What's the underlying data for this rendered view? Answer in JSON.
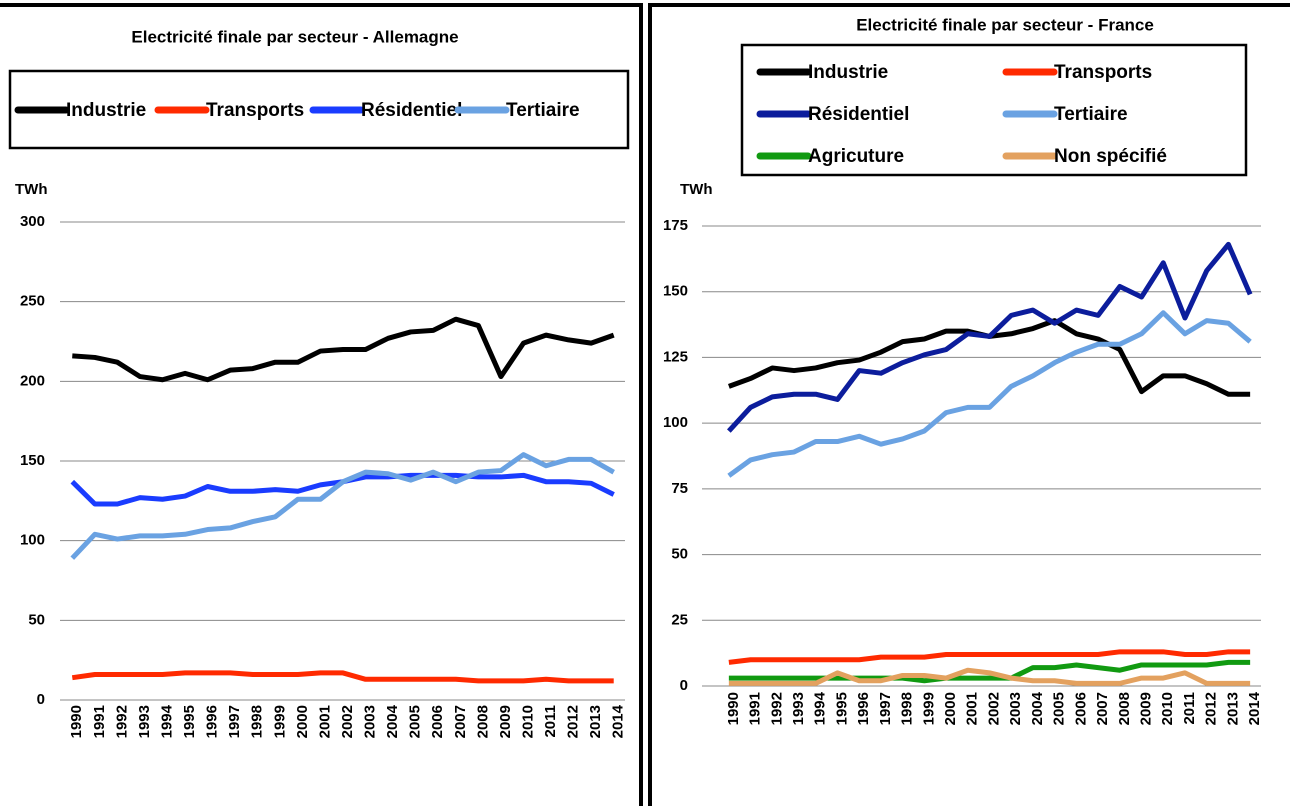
{
  "chart_data": [
    {
      "type": "line",
      "title": "Electricité finale par secteur -  Allemagne",
      "y_label": "TWh",
      "categories": [
        "1990",
        "1991",
        "1992",
        "1993",
        "1994",
        "1995",
        "1996",
        "1997",
        "1998",
        "1999",
        "2000",
        "2001",
        "2002",
        "2003",
        "2004",
        "2005",
        "2006",
        "2007",
        "2008",
        "2009",
        "2010",
        "2011",
        "2012",
        "2013",
        "2014"
      ],
      "ylim": [
        0,
        300
      ],
      "yticks": [
        0,
        50,
        100,
        150,
        200,
        250,
        300
      ],
      "grid": true,
      "series": [
        {
          "name": "Industrie",
          "color": "#000000",
          "values": [
            216,
            215,
            212,
            203,
            201,
            205,
            201,
            207,
            208,
            212,
            212,
            219,
            220,
            220,
            227,
            231,
            232,
            239,
            235,
            203,
            224,
            229,
            226,
            224,
            229
          ]
        },
        {
          "name": "Transports",
          "color": "#ff2a00",
          "values": [
            14,
            16,
            16,
            16,
            16,
            17,
            17,
            17,
            16,
            16,
            16,
            17,
            17,
            13,
            13,
            13,
            13,
            13,
            12,
            12,
            12,
            13,
            12,
            12,
            12
          ]
        },
        {
          "name": "Résidentiel",
          "color": "#1a3cff",
          "values": [
            137,
            123,
            123,
            127,
            126,
            128,
            134,
            131,
            131,
            132,
            131,
            135,
            137,
            140,
            140,
            141,
            141,
            141,
            140,
            140,
            141,
            137,
            137,
            136,
            129
          ]
        },
        {
          "name": "Tertiaire",
          "color": "#6aa2e2",
          "values": [
            89,
            104,
            101,
            103,
            103,
            104,
            107,
            108,
            112,
            115,
            126,
            126,
            137,
            143,
            142,
            138,
            143,
            137,
            143,
            144,
            154,
            147,
            151,
            151,
            143
          ]
        }
      ]
    },
    {
      "type": "line",
      "title": "Electricité finale par secteur - France",
      "y_label": "TWh",
      "categories": [
        "1990",
        "1991",
        "1992",
        "1993",
        "1994",
        "1995",
        "1996",
        "1997",
        "1998",
        "1999",
        "2000",
        "2001",
        "2002",
        "2003",
        "2004",
        "2005",
        "2006",
        "2007",
        "2008",
        "2009",
        "2010",
        "2011",
        "2012",
        "2013",
        "2014"
      ],
      "ylim": [
        0,
        175
      ],
      "yticks": [
        0,
        25,
        50,
        75,
        100,
        125,
        150,
        175
      ],
      "grid": true,
      "series": [
        {
          "name": "Industrie",
          "color": "#000000",
          "values": [
            114,
            117,
            121,
            120,
            121,
            123,
            124,
            127,
            131,
            132,
            135,
            135,
            133,
            134,
            136,
            139,
            134,
            132,
            128,
            112,
            118,
            118,
            115,
            111,
            111
          ]
        },
        {
          "name": "Transports",
          "color": "#ff2a00",
          "values": [
            9,
            10,
            10,
            10,
            10,
            10,
            10,
            11,
            11,
            11,
            12,
            12,
            12,
            12,
            12,
            12,
            12,
            12,
            13,
            13,
            13,
            12,
            12,
            13,
            13
          ]
        },
        {
          "name": "Résidentiel",
          "color": "#0c1d9c",
          "values": [
            97,
            106,
            110,
            111,
            111,
            109,
            120,
            119,
            123,
            126,
            128,
            134,
            133,
            141,
            143,
            138,
            143,
            141,
            152,
            148,
            161,
            140,
            158,
            168,
            149
          ]
        },
        {
          "name": "Tertiaire",
          "color": "#6aa2e2",
          "values": [
            80,
            86,
            88,
            89,
            93,
            93,
            95,
            92,
            94,
            97,
            104,
            106,
            106,
            114,
            118,
            123,
            127,
            130,
            130,
            134,
            142,
            134,
            139,
            138,
            131
          ]
        },
        {
          "name": "Agricuture",
          "color": "#119a11",
          "values": [
            3,
            3,
            3,
            3,
            3,
            3,
            3,
            3,
            3,
            2,
            3,
            3,
            3,
            3,
            7,
            7,
            8,
            7,
            6,
            8,
            8,
            8,
            8,
            9,
            9
          ]
        },
        {
          "name": "Non spécifié",
          "color": "#e3a15f",
          "values": [
            1,
            1,
            1,
            1,
            1,
            5,
            2,
            2,
            4,
            4,
            3,
            6,
            5,
            3,
            2,
            2,
            1,
            1,
            1,
            3,
            3,
            5,
            1,
            1,
            1
          ]
        }
      ]
    }
  ]
}
